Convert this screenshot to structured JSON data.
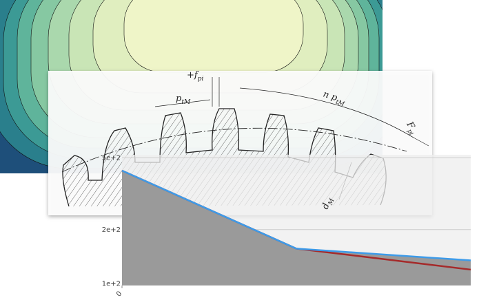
{
  "chart_data": {
    "type": "line",
    "log_y": true,
    "grid": true,
    "x": [
      0,
      5,
      10
    ],
    "xlim": [
      0,
      10
    ],
    "xticks": [
      0
    ],
    "ylim": [
      98,
      520
    ],
    "yticks": [
      {
        "value": 500,
        "label": "5e+2"
      },
      {
        "value": 200,
        "label": "2e+2"
      },
      {
        "value": 100,
        "label": "1e+2"
      }
    ],
    "series": [
      {
        "color": "#a52a2a",
        "values": [
          425,
          157,
          120
        ]
      },
      {
        "color": "#3d9be9",
        "values": [
          425,
          157,
          135
        ],
        "fill": "#9a9a9a"
      }
    ]
  },
  "diagram": {
    "labels": [
      {
        "text": "+f",
        "sub": "pi"
      },
      {
        "text": "p",
        "sub": "tM"
      },
      {
        "text": "n p",
        "sub": "tM"
      },
      {
        "text": "F",
        "sub": "pi"
      },
      {
        "text": "d",
        "sub": "M"
      }
    ]
  }
}
